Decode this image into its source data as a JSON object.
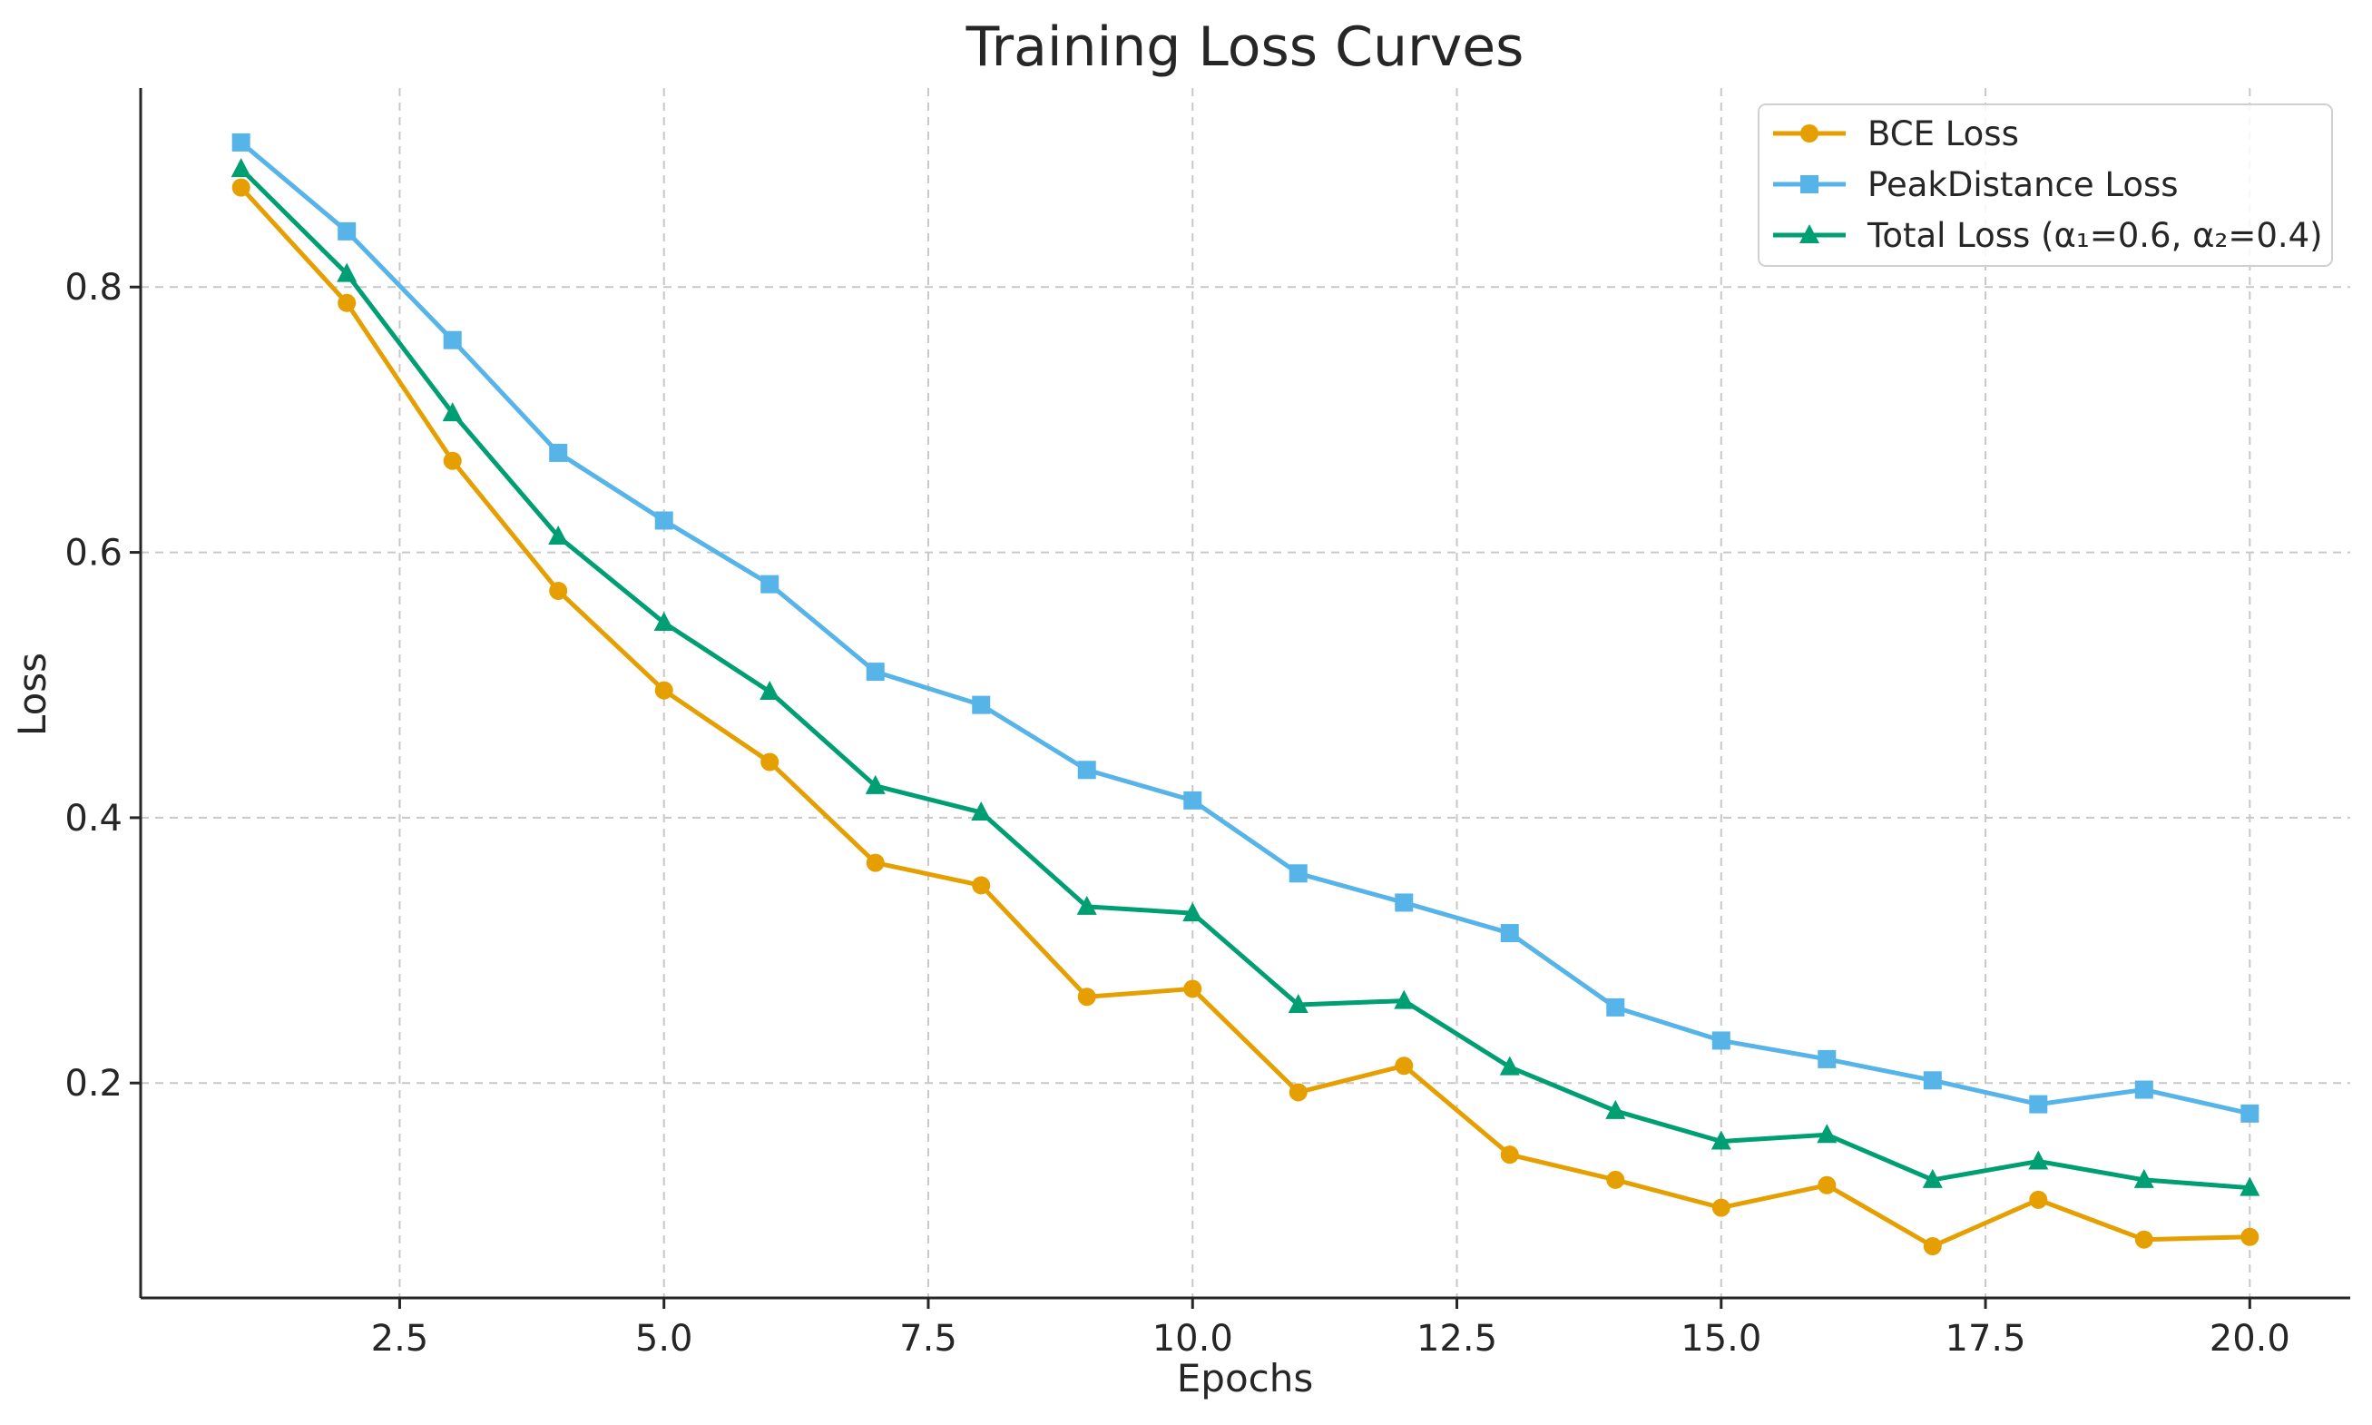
{
  "chart_data": {
    "type": "line",
    "title": "Training Loss Curves",
    "xlabel": "Epochs",
    "ylabel": "Loss",
    "xlim": [
      0.05,
      20.95
    ],
    "ylim": [
      0.038,
      0.95
    ],
    "xticks": [
      2.5,
      5.0,
      7.5,
      10.0,
      12.5,
      15.0,
      17.5,
      20.0
    ],
    "xtick_labels": [
      "2.5",
      "5.0",
      "7.5",
      "10.0",
      "12.5",
      "15.0",
      "17.5",
      "20.0"
    ],
    "yticks": [
      0.2,
      0.4,
      0.6,
      0.8
    ],
    "ytick_labels": [
      "0.2",
      "0.4",
      "0.6",
      "0.8"
    ],
    "grid": true,
    "legend_position": "top-right",
    "x": [
      1,
      2,
      3,
      4,
      5,
      6,
      7,
      8,
      9,
      10,
      11,
      12,
      13,
      14,
      15,
      16,
      17,
      18,
      19,
      20
    ],
    "series": [
      {
        "name": "BCE Loss",
        "color": "#E69F00",
        "marker": "circle",
        "values": [
          0.875,
          0.788,
          0.669,
          0.571,
          0.496,
          0.442,
          0.366,
          0.349,
          0.265,
          0.271,
          0.193,
          0.213,
          0.146,
          0.127,
          0.106,
          0.123,
          0.077,
          0.112,
          0.082,
          0.084
        ]
      },
      {
        "name": "PeakDistance Loss",
        "color": "#56B4E9",
        "marker": "square",
        "values": [
          0.909,
          0.842,
          0.76,
          0.675,
          0.624,
          0.576,
          0.51,
          0.485,
          0.436,
          0.413,
          0.358,
          0.336,
          0.313,
          0.257,
          0.232,
          0.218,
          0.202,
          0.184,
          0.195,
          0.177
        ]
      },
      {
        "name": "Total Loss (α₁=0.6, α₂=0.4)",
        "color": "#009E73",
        "marker": "triangle",
        "values": [
          0.889,
          0.81,
          0.705,
          0.612,
          0.547,
          0.495,
          0.424,
          0.404,
          0.333,
          0.328,
          0.259,
          0.262,
          0.212,
          0.179,
          0.156,
          0.161,
          0.127,
          0.141,
          0.127,
          0.121
        ]
      }
    ]
  }
}
